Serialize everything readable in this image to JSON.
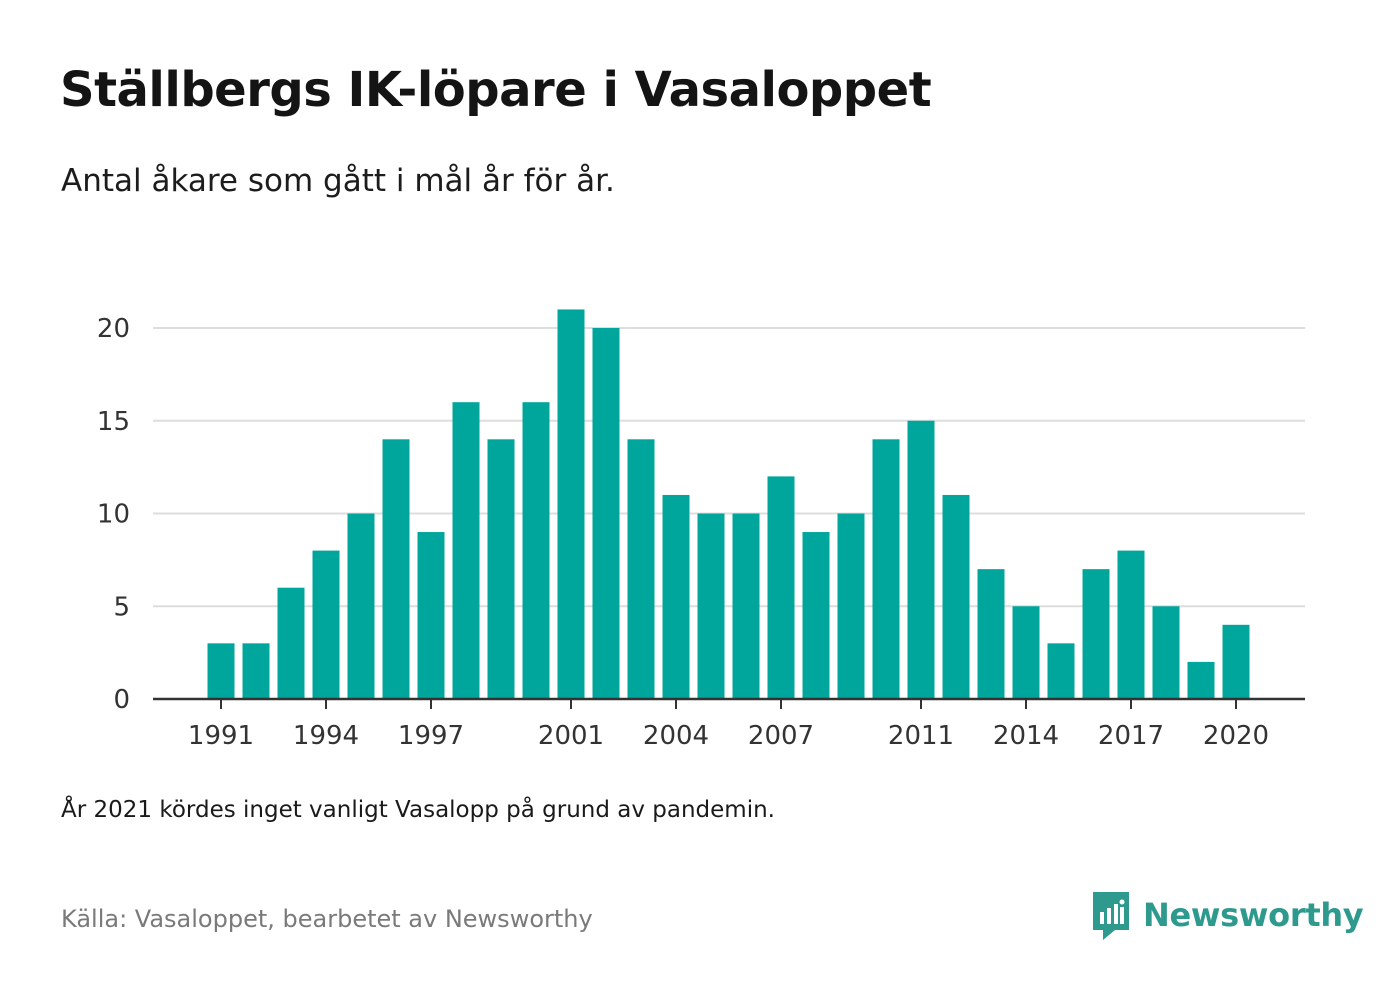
{
  "header": {
    "title": "Ställbergs IK-löpare i Vasaloppet",
    "subtitle": "Antal åkare som gått i mål år för år."
  },
  "footer": {
    "note": "År 2021 kördes inget vanligt Vasalopp på grund av pandemin.",
    "source": "Källa: Vasaloppet, bearbetet av Newsworthy",
    "brand": "Newsworthy",
    "brand_icon": "bar-chart-logo-icon"
  },
  "colors": {
    "bar": "#00a59b",
    "grid": "#dddddd",
    "axis": "#333333",
    "brand": "#2e9a8e"
  },
  "chart_data": {
    "type": "bar",
    "categories": [
      1991,
      1992,
      1993,
      1994,
      1995,
      1996,
      1997,
      1998,
      1999,
      2000,
      2001,
      2002,
      2003,
      2004,
      2005,
      2006,
      2007,
      2008,
      2009,
      2010,
      2011,
      2012,
      2013,
      2014,
      2015,
      2016,
      2017,
      2018,
      2019,
      2020
    ],
    "values": [
      3,
      3,
      6,
      8,
      10,
      14,
      9,
      16,
      14,
      16,
      21,
      20,
      14,
      11,
      10,
      10,
      12,
      9,
      10,
      14,
      15,
      11,
      7,
      5,
      3,
      7,
      8,
      5,
      2,
      4
    ],
    "x_tick_labels": [
      "1991",
      "1994",
      "1997",
      "2001",
      "2004",
      "2007",
      "2011",
      "2014",
      "2017",
      "2020"
    ],
    "y_ticks": [
      0,
      5,
      10,
      15,
      20
    ],
    "ylim": [
      0,
      22
    ],
    "grid": true,
    "legend": "none"
  }
}
